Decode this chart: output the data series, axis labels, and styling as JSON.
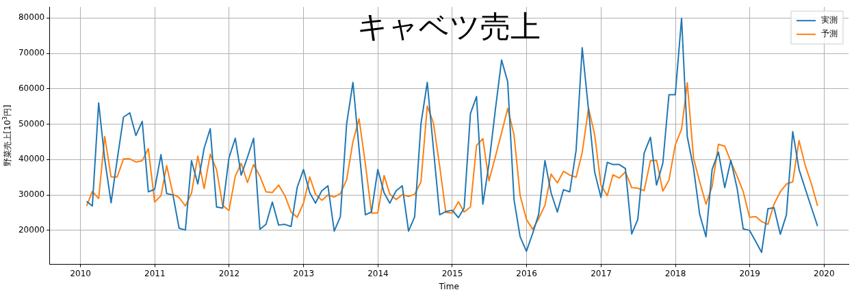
{
  "chart_data": {
    "type": "line",
    "title": "キャベツ売上",
    "xlabel": "Time",
    "ylabel": "野菜売上[10$^{3}$円]",
    "x": [
      "2010-01-31",
      "2010-02-28",
      "2010-03-31",
      "2010-04-30",
      "2010-05-31",
      "2010-06-30",
      "2010-07-31",
      "2010-08-31",
      "2010-09-30",
      "2010-10-31",
      "2010-11-30",
      "2010-12-31",
      "2011-01-31",
      "2011-02-28",
      "2011-03-31",
      "2011-04-30",
      "2011-05-31",
      "2011-06-30",
      "2011-07-31",
      "2011-08-31",
      "2011-09-30",
      "2011-10-31",
      "2011-11-30",
      "2011-12-31",
      "2012-01-31",
      "2012-02-29",
      "2012-03-31",
      "2012-04-30",
      "2012-05-31",
      "2012-06-30",
      "2012-07-31",
      "2012-08-31",
      "2012-09-30",
      "2012-10-31",
      "2012-11-30",
      "2012-12-31",
      "2013-01-31",
      "2013-02-28",
      "2013-03-31",
      "2013-04-30",
      "2013-05-31",
      "2013-06-30",
      "2013-07-31",
      "2013-08-31",
      "2013-09-30",
      "2013-10-31",
      "2013-11-30",
      "2013-12-31",
      "2014-01-31",
      "2014-02-28",
      "2014-03-31",
      "2014-04-30",
      "2014-05-31",
      "2014-06-30",
      "2014-07-31",
      "2014-08-31",
      "2014-09-30",
      "2014-10-31",
      "2014-11-30",
      "2014-12-31",
      "2015-01-31",
      "2015-02-28",
      "2015-03-31",
      "2015-04-30",
      "2015-05-31",
      "2015-06-30",
      "2015-07-31",
      "2015-08-31",
      "2015-09-30",
      "2015-10-31",
      "2015-11-30",
      "2015-12-31",
      "2016-01-31",
      "2016-02-29",
      "2016-03-31",
      "2016-04-30",
      "2016-05-31",
      "2016-06-30",
      "2016-07-31",
      "2016-08-31",
      "2016-09-30",
      "2016-10-31",
      "2016-11-30",
      "2016-12-31",
      "2017-01-31",
      "2017-02-28",
      "2017-03-31",
      "2017-04-30",
      "2017-05-31",
      "2017-06-30",
      "2017-07-31",
      "2017-08-31",
      "2017-09-30",
      "2017-10-31",
      "2017-11-30",
      "2017-12-31",
      "2018-01-31",
      "2018-02-28",
      "2018-03-31",
      "2018-04-30",
      "2018-05-31",
      "2018-06-30",
      "2018-07-31",
      "2018-08-31",
      "2018-09-30",
      "2018-10-31",
      "2018-11-30",
      "2018-12-31",
      "2019-01-31",
      "2019-02-28",
      "2019-03-31",
      "2019-04-30",
      "2019-05-31",
      "2019-06-30",
      "2019-07-31",
      "2019-08-31",
      "2019-09-30",
      "2019-10-31",
      "2019-11-30"
    ],
    "series": [
      {
        "name": "実測",
        "color": "#1f77b4",
        "values": [
          28200,
          26900,
          56000,
          40000,
          27800,
          40000,
          52000,
          53200,
          46800,
          50800,
          30900,
          31600,
          41400,
          30400,
          30000,
          20600,
          20100,
          39700,
          33100,
          43200,
          48700,
          26600,
          26300,
          40500,
          46000,
          35600,
          40700,
          46000,
          20300,
          21700,
          28000,
          21500,
          21700,
          21100,
          32100,
          37200,
          30600,
          27700,
          31200,
          32600,
          19800,
          23800,
          50100,
          61800,
          43000,
          24400,
          25200,
          37200,
          30600,
          27700,
          31200,
          32600,
          19800,
          23800,
          50100,
          61800,
          43200,
          24400,
          25300,
          25700,
          23600,
          26300,
          53000,
          57800,
          27400,
          38800,
          53900,
          68100,
          62000,
          28700,
          18200,
          14100,
          19200,
          24500,
          39700,
          30600,
          25200,
          31500,
          30900,
          42600,
          71600,
          54000,
          36500,
          29300,
          39200,
          38600,
          38600,
          37500,
          19000,
          23100,
          41800,
          46300,
          32800,
          39000,
          58300,
          58300,
          79900,
          46500,
          37500,
          24500,
          18200,
          37200,
          42100,
          32100,
          39800,
          31800,
          20400,
          20000,
          16800,
          13800,
          26100,
          26400,
          18900,
          24400,
          47900,
          37200,
          31800,
          26400,
          21200
        ]
      },
      {
        "name": "予測",
        "color": "#ff7f0e",
        "values": [
          26900,
          31000,
          29000,
          46500,
          35100,
          35100,
          40200,
          40200,
          39300,
          39700,
          43100,
          28000,
          29800,
          38300,
          30200,
          29300,
          26900,
          30500,
          41000,
          31800,
          41500,
          37200,
          27100,
          25600,
          35300,
          38900,
          33500,
          38600,
          35300,
          30900,
          30700,
          32800,
          29900,
          25200,
          23700,
          27700,
          35100,
          30200,
          28500,
          30000,
          29400,
          30400,
          34300,
          45100,
          51500,
          38800,
          24900,
          24900,
          35500,
          30200,
          28700,
          30100,
          29600,
          30200,
          33700,
          55100,
          50400,
          38100,
          25100,
          24900,
          28100,
          25200,
          26600,
          44000,
          45900,
          34000,
          40700,
          47600,
          54400,
          47000,
          29900,
          23100,
          20300,
          23300,
          27100,
          35900,
          33400,
          36700,
          35600,
          35000,
          42000,
          54500,
          47100,
          32800,
          29800,
          35700,
          34800,
          36500,
          32100,
          31900,
          31200,
          39700,
          39800,
          31100,
          34200,
          44100,
          48600,
          61700,
          40300,
          33700,
          27400,
          32400,
          44300,
          43800,
          39400,
          35300,
          30900,
          23700,
          23900,
          22500,
          21700,
          27400,
          30900,
          33100,
          33700,
          45400,
          38400,
          33100,
          26900
        ]
      }
    ],
    "xlim": [
      "2009-08-01",
      "2020-04-30"
    ],
    "xticks": [
      {
        "value": "2010",
        "label": "2010"
      },
      {
        "value": "2011",
        "label": "2011"
      },
      {
        "value": "2012",
        "label": "2012"
      },
      {
        "value": "2013",
        "label": "2013"
      },
      {
        "value": "2014",
        "label": "2014"
      },
      {
        "value": "2015",
        "label": "2015"
      },
      {
        "value": "2016",
        "label": "2016"
      },
      {
        "value": "2017",
        "label": "2017"
      },
      {
        "value": "2018",
        "label": "2018"
      },
      {
        "value": "2019",
        "label": "2019"
      },
      {
        "value": "2020",
        "label": "2020"
      }
    ],
    "ylim": [
      10400,
      83100
    ],
    "yticks": [
      20000,
      30000,
      40000,
      50000,
      60000,
      70000,
      80000
    ],
    "grid": true,
    "legend": "top right",
    "marker": "none",
    "line_style": "solid"
  }
}
